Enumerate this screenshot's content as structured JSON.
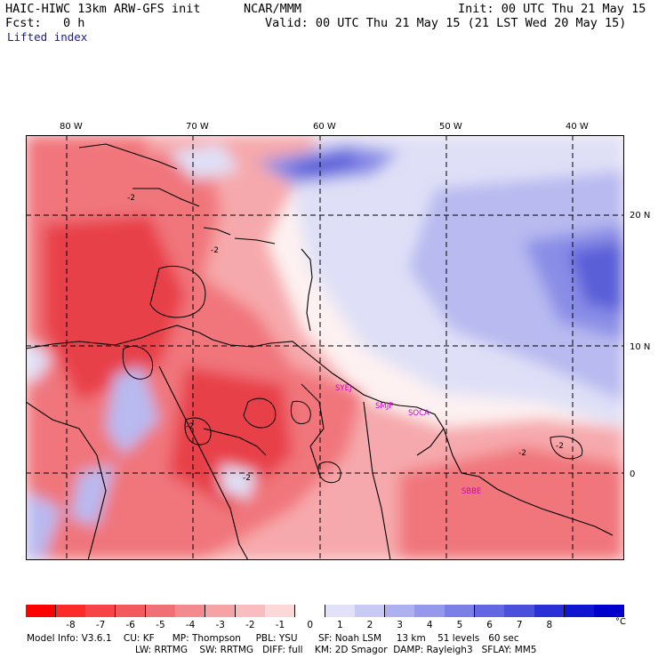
{
  "header": {
    "model_title": "HAIC-HIWC 13km ARW-GFS init",
    "org": "NCAR/MMM",
    "init": "Init: 00 UTC Thu 21 May 15",
    "fcst": "Fcst:   0 h",
    "valid": "Valid: 00 UTC Thu 21 May 15 (21 LST Wed 20 May 15)",
    "field": "Lifted index"
  },
  "map": {
    "lon_labels": [
      "80 W",
      "70 W",
      "60 W",
      "50 W",
      "40 W"
    ],
    "lat_labels": [
      "20 N",
      "10 N",
      "0"
    ],
    "contour_label": "-2",
    "stations": [
      "SYEJ",
      "SMJP",
      "SOCA",
      "SBBE"
    ],
    "colors": {
      "neg_deep": "#e8404a",
      "neg_mid": "#f0767c",
      "neg_light": "#f6a9ac",
      "neg_faint": "#fad0d2",
      "neutral": "#fdf1f1",
      "pos_faint": "#dfe0f7",
      "pos_light": "#b8baf0",
      "pos_mid": "#8a8de6",
      "pos_deep": "#5a5fd8",
      "station": "#cc00cc"
    }
  },
  "colorbar": {
    "ticks": [
      "-8",
      "-7",
      "-6",
      "-5",
      "-4",
      "-3",
      "-2",
      "-1",
      "0",
      "1",
      "2",
      "3",
      "4",
      "5",
      "6",
      "7",
      "8"
    ],
    "unit": "°C",
    "colors": [
      "#ff0000",
      "#ff2a2a",
      "#f74448",
      "#f25a5e",
      "#f07075",
      "#f38a8d",
      "#f6a3a6",
      "#f9bdbf",
      "#fcd8d9",
      "#ffffff",
      "#e1e1fa",
      "#c8c9f5",
      "#aeb0f0",
      "#9598eb",
      "#7c80e6",
      "#6367e1",
      "#4a4fdc",
      "#2b30d6",
      "#1016d0",
      "#0000cc"
    ]
  },
  "footer": {
    "line1": "Model Info: V3.6.1    CU: KF      MP: Thompson     PBL: YSU       SF: Noah LSM     13 km    51 levels   60 sec",
    "line2": "LW: RRTMG    SW: RRTMG   DIFF: full    KM: 2D Smagor  DAMP: Rayleigh3   SFLAY: MM5"
  }
}
